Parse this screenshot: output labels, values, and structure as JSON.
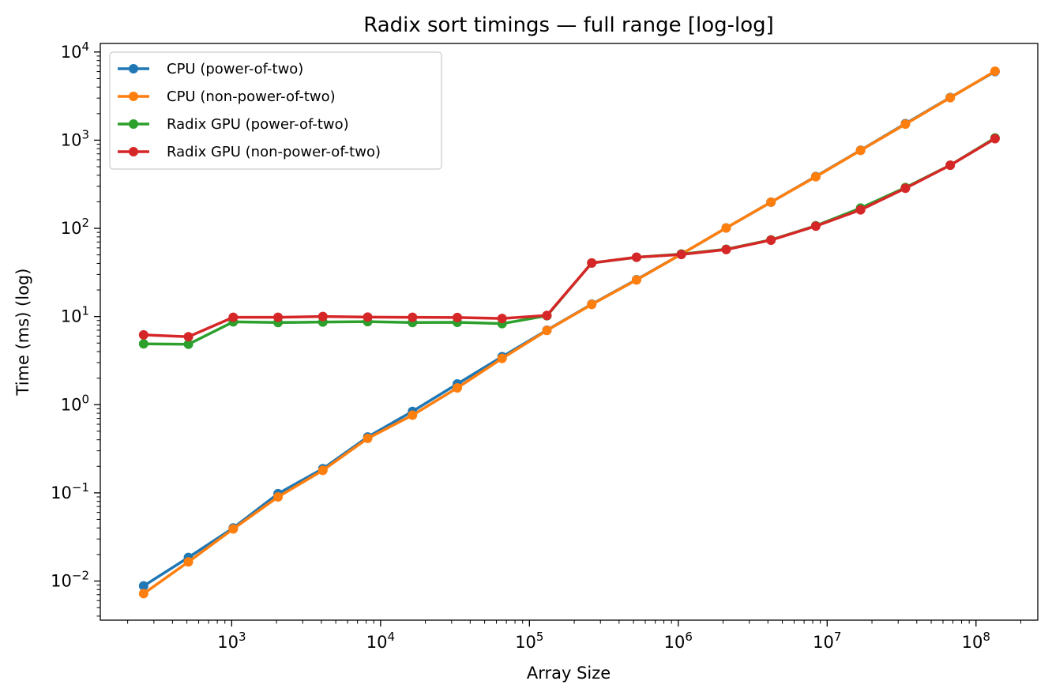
{
  "chart_data": {
    "type": "line",
    "title": "Radix sort timings — full range [log-log]",
    "xlabel": "Array Size",
    "ylabel": "Time (ms) (log)",
    "xscale": "log",
    "yscale": "log",
    "xlim": [
      131,
      260000000
    ],
    "ylim": [
      0.0036,
      12500
    ],
    "x_tick_labels": [
      "10^3",
      "10^4",
      "10^5",
      "10^6",
      "10^7",
      "10^8"
    ],
    "y_tick_labels": [
      "10^-2",
      "10^-1",
      "10^0",
      "10^1",
      "10^2",
      "10^3",
      "10^4"
    ],
    "legend_position": "upper-left",
    "grid": false,
    "x": [
      256,
      512,
      1024,
      2048,
      4096,
      8192,
      16384,
      32768,
      65536,
      131072,
      262144,
      524288,
      1048576,
      2097152,
      4194304,
      8388608,
      16777216,
      33554432,
      67108864,
      134217728
    ],
    "series": [
      {
        "name": "CPU (power-of-two)",
        "color": "#1f77b4",
        "values": [
          0.0088,
          0.0185,
          0.04,
          0.098,
          0.188,
          0.43,
          0.84,
          1.72,
          3.5,
          7.0,
          13.8,
          26.2,
          51.0,
          101.0,
          198.0,
          388.0,
          770.0,
          1540.0,
          3050.0,
          6000.0
        ]
      },
      {
        "name": "CPU (non-power-of-two)",
        "color": "#ff7f0e",
        "values": [
          0.0072,
          0.0165,
          0.039,
          0.09,
          0.18,
          0.415,
          0.76,
          1.55,
          3.35,
          6.95,
          13.7,
          26.0,
          51.0,
          101.0,
          198.0,
          385.0,
          765.0,
          1520.0,
          3030.0,
          6050.0
        ]
      },
      {
        "name": "Radix GPU (power-of-two)",
        "color": "#2ca02c",
        "values": [
          4.9,
          4.85,
          8.7,
          8.55,
          8.65,
          8.75,
          8.55,
          8.6,
          8.3,
          10.2,
          40.5,
          47.0,
          51.0,
          58.0,
          74.0,
          107.0,
          170.0,
          290.0,
          520.0,
          1060.0
        ]
      },
      {
        "name": "Radix GPU (non-power-of-two)",
        "color": "#d62728",
        "values": [
          6.2,
          5.9,
          9.8,
          9.8,
          10.0,
          9.85,
          9.8,
          9.75,
          9.5,
          10.3,
          40.5,
          47.0,
          50.5,
          57.5,
          73.5,
          106.0,
          162.0,
          285.0,
          520.0,
          1040.0
        ]
      }
    ]
  }
}
